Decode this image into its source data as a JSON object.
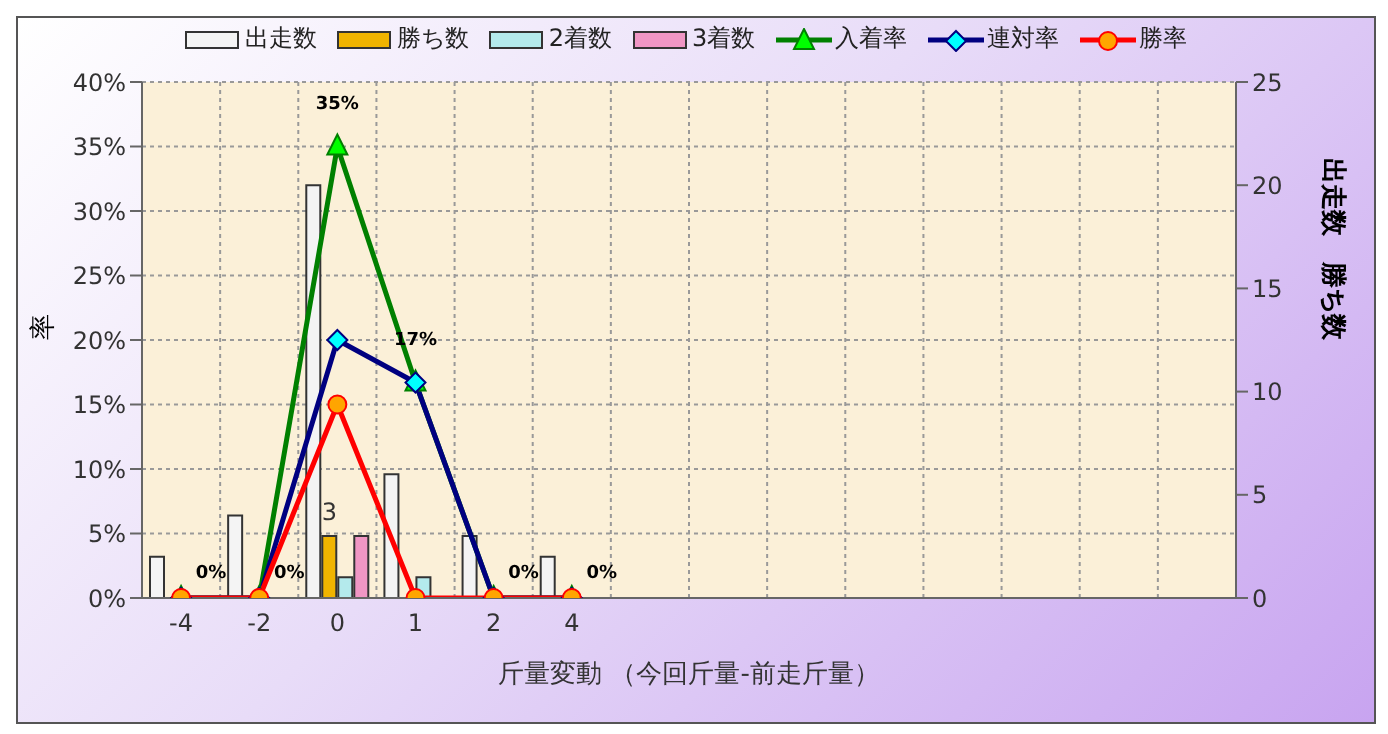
{
  "chart_data": {
    "type": "bar",
    "xlabel": "斤量変動 （今回斤量-前走斤量）",
    "ylabel": "率",
    "y2label": "出走数　勝ち数",
    "categories": [
      "-4",
      "-2",
      "0",
      "1",
      "2",
      "4",
      null,
      null,
      null,
      null,
      null,
      null,
      null,
      null
    ],
    "series": [
      {
        "name": "出走数",
        "axis": "y2",
        "color": "#f4f4f4",
        "values": [
          2,
          4,
          20,
          6,
          3,
          2,
          null,
          null,
          null,
          null,
          null,
          null,
          null,
          null
        ]
      },
      {
        "name": "勝ち数",
        "axis": "y2",
        "color": "#f0b400",
        "values": [
          0,
          0,
          3,
          0,
          0,
          0,
          null,
          null,
          null,
          null,
          null,
          null,
          null,
          null
        ],
        "value_labels": [
          null,
          null,
          "3",
          null,
          null,
          null,
          null,
          null,
          null,
          null,
          null,
          null,
          null,
          null
        ]
      },
      {
        "name": "2着数",
        "axis": "y2",
        "color": "#b4eaec",
        "values": [
          0,
          0,
          1,
          1,
          0,
          0,
          null,
          null,
          null,
          null,
          null,
          null,
          null,
          null
        ]
      },
      {
        "name": "3着数",
        "axis": "y2",
        "color": "#f096c4",
        "values": [
          0,
          0,
          3,
          0,
          0,
          0,
          null,
          null,
          null,
          null,
          null,
          null,
          null,
          null
        ]
      },
      {
        "name": "入着率",
        "type": "line",
        "color": "#008000",
        "marker": "triangle",
        "values": [
          0,
          0,
          35,
          16.7,
          0,
          0,
          null,
          null,
          null,
          null,
          null,
          null,
          null,
          null
        ],
        "value_labels": [
          "0%",
          "0%",
          "35%",
          "17%",
          "0%",
          "0%",
          null,
          null,
          null,
          null,
          null,
          null,
          null,
          null
        ]
      },
      {
        "name": "連対率",
        "type": "line",
        "color": "#000080",
        "marker": "diamond",
        "values": [
          0,
          0,
          20,
          16.7,
          0,
          0,
          null,
          null,
          null,
          null,
          null,
          null,
          null,
          null
        ]
      },
      {
        "name": "勝率",
        "type": "line",
        "color": "#ff0000",
        "marker": "circle",
        "values": [
          0,
          0,
          15,
          0,
          0,
          0,
          null,
          null,
          null,
          null,
          null,
          null,
          null,
          null
        ]
      }
    ],
    "ylim": [
      0,
      40
    ],
    "yticks": [
      {
        "value": 0,
        "label": "0%"
      },
      {
        "value": 5,
        "label": "5%"
      },
      {
        "value": 10,
        "label": "10%"
      },
      {
        "value": 15,
        "label": "15%"
      },
      {
        "value": 20,
        "label": "20%"
      },
      {
        "value": 25,
        "label": "25%"
      },
      {
        "value": 30,
        "label": "30%"
      },
      {
        "value": 35,
        "label": "35%"
      },
      {
        "value": 40,
        "label": "40%"
      }
    ],
    "y2lim": [
      0,
      25
    ],
    "y2ticks": [
      0,
      5,
      10,
      15,
      20,
      25
    ],
    "grid": true,
    "legend": "top"
  }
}
